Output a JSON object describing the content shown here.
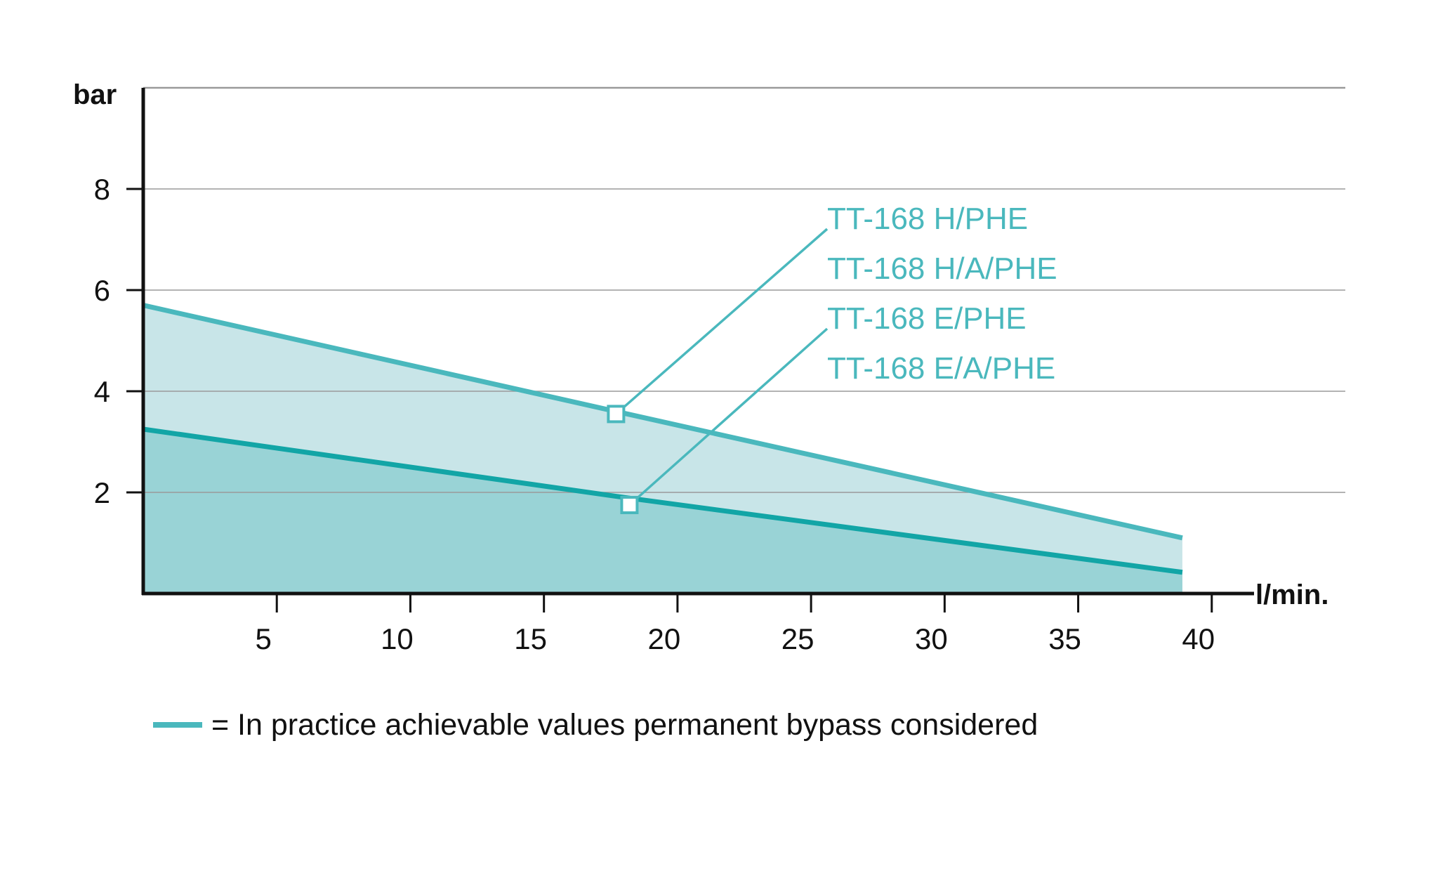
{
  "chart_data": {
    "type": "area",
    "xlabel": "l/min.",
    "ylabel": "bar",
    "xlim": [
      0,
      45
    ],
    "ylim": [
      0,
      10
    ],
    "x_ticks": [
      5,
      10,
      15,
      20,
      25,
      30,
      35,
      40
    ],
    "y_ticks": [
      2,
      4,
      6,
      8
    ],
    "grid": true,
    "series": [
      {
        "labels": [
          "TT-168 H/PHE",
          "TT-168 H/A/PHE"
        ],
        "x": [
          0,
          17.7,
          38.9
        ],
        "values": [
          5.7,
          3.6,
          1.1
        ],
        "marker_point": [
          17.7,
          3.55
        ],
        "line_color": "#4ab8bd",
        "fill_color": "#c8e5e8"
      },
      {
        "labels": [
          "TT-168 E/PHE",
          "TT-168 E/A/PHE"
        ],
        "x": [
          0,
          18,
          38.9
        ],
        "values": [
          3.25,
          1.9,
          0.42
        ],
        "marker_point": [
          18.2,
          1.75
        ],
        "line_color": "#12a5a6",
        "fill_color": "#99d3d6"
      }
    ],
    "legend": {
      "placement": "bottom-left",
      "text": "= In practice achievable values permanent bypass considered",
      "color": "#4ab8bd"
    },
    "label_color": "#4ab8bd",
    "grid_color": "#9a9a9a",
    "axis_color": "#111111"
  }
}
